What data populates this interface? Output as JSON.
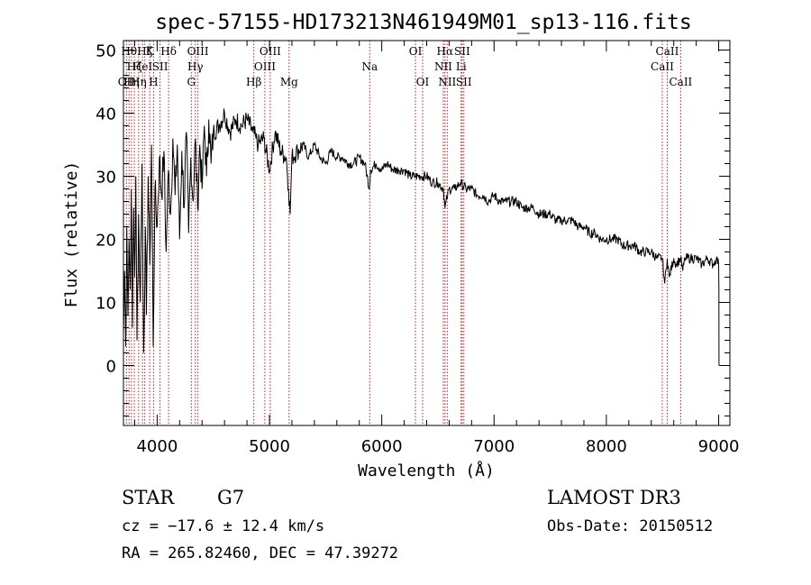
{
  "chart_data": {
    "type": "line",
    "title": "spec-57155-HD173213N461949M01_sp13-116.fits",
    "xlabel": "Wavelength (Å)",
    "ylabel": "Flux (relative)",
    "xlim": [
      3700,
      9100
    ],
    "ylim": [
      -9.5,
      51.5
    ],
    "xticks": [
      4000,
      5000,
      6000,
      7000,
      8000,
      9000
    ],
    "yticks": [
      0,
      10,
      20,
      30,
      40,
      50
    ],
    "line_color": "#000000",
    "marker_color": "#b22222",
    "series": [
      {
        "name": "flux",
        "x": [
          3700,
          3710,
          3720,
          3730,
          3740,
          3750,
          3760,
          3770,
          3780,
          3790,
          3800,
          3810,
          3820,
          3835,
          3850,
          3865,
          3880,
          3895,
          3905,
          3920,
          3935,
          3950,
          3965,
          3980,
          4000,
          4020,
          4040,
          4060,
          4080,
          4100,
          4120,
          4140,
          4160,
          4180,
          4200,
          4220,
          4240,
          4260,
          4280,
          4300,
          4320,
          4340,
          4360,
          4380,
          4400,
          4420,
          4440,
          4460,
          4480,
          4500,
          4550,
          4600,
          4650,
          4700,
          4750,
          4800,
          4850,
          4880,
          4900,
          4950,
          5000,
          5050,
          5100,
          5150,
          5170,
          5184,
          5200,
          5250,
          5300,
          5350,
          5400,
          5450,
          5500,
          5550,
          5600,
          5650,
          5700,
          5750,
          5800,
          5850,
          5890,
          5900,
          5950,
          6000,
          6050,
          6100,
          6150,
          6200,
          6250,
          6300,
          6350,
          6400,
          6450,
          6500,
          6550,
          6563,
          6600,
          6650,
          6700,
          6750,
          6800,
          6850,
          6900,
          6950,
          7000,
          7050,
          7100,
          7150,
          7200,
          7250,
          7300,
          7350,
          7400,
          7450,
          7500,
          7550,
          7600,
          7650,
          7700,
          7750,
          7800,
          7850,
          7900,
          7950,
          8000,
          8050,
          8100,
          8150,
          8200,
          8250,
          8300,
          8350,
          8400,
          8450,
          8498,
          8520,
          8542,
          8560,
          8600,
          8620,
          8662,
          8680,
          8700,
          8750,
          8800,
          8850,
          8900,
          8950,
          8980,
          9000,
          9002,
          9003
        ],
        "values": [
          5,
          15,
          3,
          22,
          8,
          20,
          12,
          28,
          6,
          25,
          14,
          30,
          4,
          24,
          10,
          32,
          2,
          22,
          8,
          30,
          16,
          35,
          3,
          28,
          22,
          33,
          27,
          34,
          18,
          31,
          24,
          36,
          27,
          35,
          20,
          34,
          25,
          37,
          21,
          33,
          26,
          36,
          25,
          35,
          28,
          38,
          30,
          39,
          32,
          37,
          38,
          40,
          37,
          39,
          38,
          39,
          37,
          36,
          35,
          36,
          31,
          37,
          34,
          33,
          28,
          24,
          33,
          34,
          35,
          33,
          35,
          33,
          32,
          34,
          33,
          33,
          32,
          32,
          33,
          32,
          28,
          31,
          32,
          31,
          32,
          31,
          31,
          31,
          30,
          30,
          30,
          30,
          29,
          29,
          28,
          25,
          28,
          28,
          29,
          28,
          28,
          27,
          27,
          26,
          27,
          26,
          26,
          26,
          26,
          25,
          25,
          25,
          24,
          24,
          24,
          23,
          23,
          23,
          23,
          22,
          22,
          21,
          21,
          20,
          20,
          20,
          20,
          19,
          19,
          19,
          18,
          18,
          18,
          17,
          17,
          13,
          17,
          14,
          17,
          16,
          17,
          15,
          17,
          17,
          17,
          16,
          17,
          16,
          17,
          16,
          12,
          0
        ]
      }
    ],
    "line_markers": [
      {
        "wavelength": 3727,
        "label": "OII",
        "row": 2
      },
      {
        "wavelength": 3750,
        "label": "Hθ",
        "row": 0
      },
      {
        "wavelength": 3771,
        "label": "Hη",
        "row": 2
      },
      {
        "wavelength": 3797,
        "label": "Hζ",
        "row": 1
      },
      {
        "wavelength": 3835,
        "label": "Hη",
        "row": 2
      },
      {
        "wavelength": 3869,
        "label": "HeI",
        "row": 1
      },
      {
        "wavelength": 3890,
        "label": "Hζ",
        "row": 0
      },
      {
        "wavelength": 3934,
        "label": "K",
        "row": 0
      },
      {
        "wavelength": 3968,
        "label": "H",
        "row": 2
      },
      {
        "wavelength": 4026,
        "label": "SII",
        "row": 1
      },
      {
        "wavelength": 4102,
        "label": "Hδ",
        "row": 0
      },
      {
        "wavelength": 4304,
        "label": "G",
        "row": 2
      },
      {
        "wavelength": 4340,
        "label": "Hγ",
        "row": 1
      },
      {
        "wavelength": 4363,
        "label": "OIII",
        "row": 0
      },
      {
        "wavelength": 4861,
        "label": "Hβ",
        "row": 2
      },
      {
        "wavelength": 4959,
        "label": "OIII",
        "row": 1
      },
      {
        "wavelength": 5007,
        "label": "OIII",
        "row": 0
      },
      {
        "wavelength": 5175,
        "label": "Mg",
        "row": 2
      },
      {
        "wavelength": 5893,
        "label": "Na",
        "row": 1
      },
      {
        "wavelength": 6300,
        "label": "OI",
        "row": 0
      },
      {
        "wavelength": 6364,
        "label": "OI",
        "row": 2
      },
      {
        "wavelength": 6548,
        "label": "NII",
        "row": 1
      },
      {
        "wavelength": 6563,
        "label": "Hα",
        "row": 0
      },
      {
        "wavelength": 6583,
        "label": "NII",
        "row": 2
      },
      {
        "wavelength": 6707,
        "label": "Li",
        "row": 1
      },
      {
        "wavelength": 6716,
        "label": "SII",
        "row": 0
      },
      {
        "wavelength": 6731,
        "label": "SII",
        "row": 2
      },
      {
        "wavelength": 8498,
        "label": "CaII",
        "row": 1
      },
      {
        "wavelength": 8542,
        "label": "CaII",
        "row": 0
      },
      {
        "wavelength": 8662,
        "label": "CaII",
        "row": 2
      }
    ]
  },
  "info": {
    "object_class": "STAR",
    "subclass": "G7",
    "survey": "LAMOST DR3",
    "redshift": "cz = −17.6 ± 12.4 km/s",
    "obs_date": "Obs-Date: 20150512",
    "coords": "RA = 265.82460, DEC =  47.39272"
  }
}
